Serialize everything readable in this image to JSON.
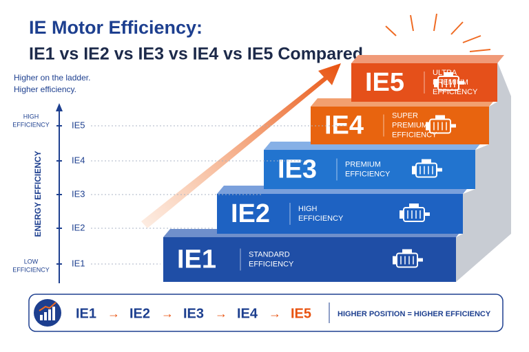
{
  "header": {
    "title": "IE Motor Efficiency:",
    "subtitle": "IE1 vs IE2 vs IE3 vs IE4 vs IE5 Compared"
  },
  "note": [
    "Higher on the ladder.",
    "Higher efficiency."
  ],
  "axis": {
    "label": "ENERGY EFFICIENCY",
    "top": [
      "HIGH",
      "EFFICIENCY"
    ],
    "bottom": [
      "LOW",
      "EFFICIENCY"
    ],
    "levels": [
      "IE1",
      "IE2",
      "IE3",
      "IE4",
      "IE5"
    ]
  },
  "steps": [
    {
      "class": "IE1",
      "description": [
        "STANDARD",
        "EFFICIENCY"
      ]
    },
    {
      "class": "IE2",
      "description": [
        "HIGH",
        "EFFICIENCY"
      ]
    },
    {
      "class": "IE3",
      "description": [
        "PREMIUM",
        "EFFICIENCY"
      ]
    },
    {
      "class": "IE4",
      "description": [
        "SUPER",
        "PREMIUM",
        "EFFICIENCY"
      ]
    },
    {
      "class": "IE5",
      "description": [
        "ULTRA",
        "PREMIUM",
        "EFFICIENCY"
      ]
    }
  ],
  "footer": {
    "sequence": [
      "IE1",
      "IE2",
      "IE3",
      "IE4",
      "IE5"
    ],
    "arrow": "→",
    "caption": "HIGHER POSITION = HIGHER EFFICIENCY"
  }
}
